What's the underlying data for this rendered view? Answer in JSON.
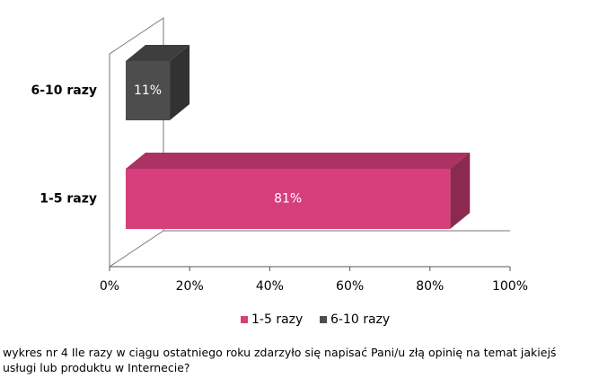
{
  "chart_data": {
    "type": "bar3d_horizontal",
    "categories": [
      "1-5 razy",
      "6-10 razy"
    ],
    "values": [
      81,
      11
    ],
    "value_labels": [
      "81%",
      "11%"
    ],
    "colors": [
      "#d63f7c",
      "#4d4d4d"
    ],
    "xlim": [
      0,
      100
    ],
    "xticks": [
      {
        "value": 0,
        "label": "0%"
      },
      {
        "value": 20,
        "label": "20%"
      },
      {
        "value": 40,
        "label": "40%"
      },
      {
        "value": 60,
        "label": "60%"
      },
      {
        "value": 80,
        "label": "80%"
      },
      {
        "value": 100,
        "label": "100%"
      }
    ],
    "caption": "wykres nr 4 Ile razy w ciągu ostatniego roku zdarzyło się napisać Pani/u złą opinię na temat jakiejś usługi lub produktu w Internecie?"
  }
}
